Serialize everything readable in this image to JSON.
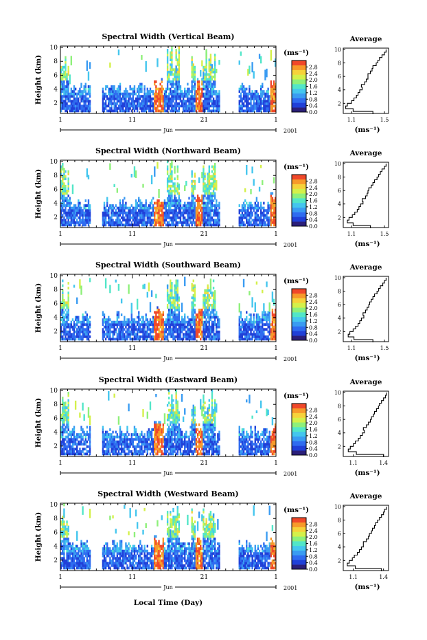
{
  "chart_data": [
    {
      "type": "heatmap",
      "title": "Spectral Width (Vertical Beam)",
      "ylabel": "Height (km)",
      "x_ticks": [
        "1",
        "11",
        "21",
        "1"
      ],
      "month_label": "Jun",
      "year_label": "2001",
      "y_ticks": [
        "2",
        "4",
        "6",
        "8",
        "10"
      ],
      "ylim": [
        0.5,
        10.2
      ],
      "colorbar_unit": "(ms⁻¹)",
      "colorbar_ticks": [
        "0.0",
        "0.4",
        "0.8",
        "1.2",
        "1.6",
        "2.0",
        "2.4",
        "2.8"
      ],
      "colorbar_range": [
        0,
        3.2
      ],
      "profile": {
        "title": "Average",
        "xlabel": "(ms⁻¹)",
        "x_ticks": [
          "1.1",
          "1.5"
        ],
        "x_tick_values": [
          1.1,
          1.5
        ],
        "xlim": [
          1.0,
          1.55
        ],
        "y_ticks": [
          "2",
          "4",
          "6",
          "8",
          "10"
        ],
        "height": [
          0.6,
          1.0,
          1.4,
          1.8,
          2.2,
          2.6,
          3.0,
          3.4,
          3.8,
          4.2,
          4.6,
          5.0,
          5.4,
          5.8,
          6.2,
          6.6,
          7.0,
          7.4,
          7.8,
          8.2,
          8.6,
          9.0,
          9.4,
          9.8
        ],
        "width": [
          1.36,
          1.12,
          1.03,
          1.05,
          1.1,
          1.13,
          1.16,
          1.18,
          1.2,
          1.23,
          1.22,
          1.26,
          1.28,
          1.3,
          1.3,
          1.33,
          1.35,
          1.36,
          1.4,
          1.42,
          1.44,
          1.47,
          1.5,
          1.52
        ]
      }
    },
    {
      "type": "heatmap",
      "title": "Spectral Width (Northward Beam)",
      "ylabel": "Height (km)",
      "x_ticks": [
        "1",
        "11",
        "21",
        "1"
      ],
      "month_label": "Jun",
      "year_label": "2001",
      "y_ticks": [
        "2",
        "4",
        "6",
        "8",
        "10"
      ],
      "ylim": [
        0.5,
        10.2
      ],
      "colorbar_unit": "(ms⁻¹)",
      "colorbar_ticks": [
        "0.0",
        "0.4",
        "0.8",
        "1.2",
        "1.6",
        "2.0",
        "2.4",
        "2.8"
      ],
      "colorbar_range": [
        0,
        3.2
      ],
      "profile": {
        "title": "Average",
        "xlabel": "(ms⁻¹)",
        "x_ticks": [
          "1.1",
          "1.5"
        ],
        "x_tick_values": [
          1.1,
          1.5
        ],
        "xlim": [
          1.0,
          1.55
        ],
        "y_ticks": [
          "2",
          "4",
          "6",
          "8",
          "10"
        ],
        "height": [
          0.6,
          1.0,
          1.4,
          1.8,
          2.2,
          2.6,
          3.0,
          3.4,
          3.8,
          4.2,
          4.6,
          5.0,
          5.4,
          5.8,
          6.2,
          6.6,
          7.0,
          7.4,
          7.8,
          8.2,
          8.6,
          9.0,
          9.4,
          9.8
        ],
        "width": [
          1.33,
          1.12,
          1.05,
          1.07,
          1.11,
          1.14,
          1.17,
          1.19,
          1.21,
          1.24,
          1.23,
          1.27,
          1.29,
          1.3,
          1.31,
          1.34,
          1.36,
          1.38,
          1.41,
          1.43,
          1.45,
          1.47,
          1.5,
          1.52
        ]
      }
    },
    {
      "type": "heatmap",
      "title": "Spectral Width (Southward Beam)",
      "ylabel": "Height (km)",
      "x_ticks": [
        "1",
        "11",
        "21",
        "1"
      ],
      "month_label": "Jun",
      "year_label": "2001",
      "y_ticks": [
        "2",
        "4",
        "6",
        "8",
        "10"
      ],
      "ylim": [
        0.5,
        10.2
      ],
      "colorbar_unit": "(ms⁻¹)",
      "colorbar_ticks": [
        "0.0",
        "0.4",
        "0.8",
        "1.2",
        "1.6",
        "2.0",
        "2.4",
        "2.8"
      ],
      "colorbar_range": [
        0,
        3.2
      ],
      "profile": {
        "title": "Average",
        "xlabel": "(ms⁻¹)",
        "x_ticks": [
          "1.1",
          "1.5"
        ],
        "x_tick_values": [
          1.1,
          1.5
        ],
        "xlim": [
          1.0,
          1.55
        ],
        "y_ticks": [
          "2",
          "4",
          "6",
          "8",
          "10"
        ],
        "height": [
          0.6,
          1.0,
          1.4,
          1.8,
          2.2,
          2.6,
          3.0,
          3.4,
          3.8,
          4.2,
          4.6,
          5.0,
          5.4,
          5.8,
          6.2,
          6.6,
          7.0,
          7.4,
          7.8,
          8.2,
          8.6,
          9.0,
          9.4,
          9.8
        ],
        "width": [
          1.36,
          1.13,
          1.06,
          1.08,
          1.12,
          1.15,
          1.18,
          1.2,
          1.22,
          1.25,
          1.24,
          1.27,
          1.29,
          1.31,
          1.32,
          1.34,
          1.36,
          1.38,
          1.41,
          1.43,
          1.45,
          1.48,
          1.5,
          1.52
        ]
      }
    },
    {
      "type": "heatmap",
      "title": "Spectral Width (Eastward Beam)",
      "ylabel": "Height (km)",
      "x_ticks": [
        "1",
        "11",
        "21",
        "1"
      ],
      "month_label": "Jun",
      "year_label": "2001",
      "y_ticks": [
        "2",
        "4",
        "6",
        "8",
        "10"
      ],
      "ylim": [
        0.5,
        10.2
      ],
      "colorbar_unit": "(ms⁻¹)",
      "colorbar_ticks": [
        "0.0",
        "0.4",
        "0.8",
        "1.2",
        "1.6",
        "2.0",
        "2.4",
        "2.8"
      ],
      "colorbar_range": [
        0,
        3.2
      ],
      "profile": {
        "title": "Average",
        "xlabel": "(ms⁻¹)",
        "x_ticks": [
          "1.1",
          "1.4"
        ],
        "x_tick_values": [
          1.1,
          1.4
        ],
        "xlim": [
          1.0,
          1.45
        ],
        "y_ticks": [
          "2",
          "4",
          "6",
          "8",
          "10"
        ],
        "height": [
          0.6,
          1.0,
          1.4,
          1.8,
          2.2,
          2.6,
          3.0,
          3.4,
          3.8,
          4.2,
          4.6,
          5.0,
          5.4,
          5.8,
          6.2,
          6.6,
          7.0,
          7.4,
          7.8,
          8.2,
          8.6,
          9.0,
          9.4,
          9.8
        ],
        "width": [
          1.4,
          1.13,
          1.05,
          1.07,
          1.1,
          1.12,
          1.15,
          1.17,
          1.19,
          1.21,
          1.2,
          1.23,
          1.25,
          1.27,
          1.28,
          1.3,
          1.31,
          1.33,
          1.35,
          1.36,
          1.38,
          1.4,
          1.42,
          1.43
        ]
      }
    },
    {
      "type": "heatmap",
      "title": "Spectral Width (Westward Beam)",
      "ylabel": "Height (km)",
      "x_ticks": [
        "1",
        "11",
        "21",
        "1"
      ],
      "month_label": "Jun",
      "year_label": "2001",
      "y_ticks": [
        "2",
        "4",
        "6",
        "8",
        "10"
      ],
      "ylim": [
        0.5,
        10.2
      ],
      "colorbar_unit": "(ms⁻¹)",
      "colorbar_ticks": [
        "0.0",
        "0.4",
        "0.8",
        "1.2",
        "1.6",
        "2.0",
        "2.4",
        "2.8"
      ],
      "colorbar_range": [
        0,
        3.2
      ],
      "profile": {
        "title": "Average",
        "xlabel": "(ms⁻¹)",
        "x_ticks": [
          "1.1",
          "1.4"
        ],
        "x_tick_values": [
          1.1,
          1.4
        ],
        "xlim": [
          1.0,
          1.45
        ],
        "y_ticks": [
          "2",
          "4",
          "6",
          "8",
          "10"
        ],
        "height": [
          0.6,
          1.0,
          1.4,
          1.8,
          2.2,
          2.6,
          3.0,
          3.4,
          3.8,
          4.2,
          4.6,
          5.0,
          5.4,
          5.8,
          6.2,
          6.6,
          7.0,
          7.4,
          7.8,
          8.2,
          8.6,
          9.0,
          9.4,
          9.8
        ],
        "width": [
          1.38,
          1.12,
          1.04,
          1.06,
          1.09,
          1.11,
          1.14,
          1.16,
          1.18,
          1.2,
          1.2,
          1.23,
          1.25,
          1.26,
          1.28,
          1.29,
          1.31,
          1.32,
          1.34,
          1.36,
          1.38,
          1.4,
          1.41,
          1.43
        ]
      }
    }
  ],
  "footer": {
    "xlabel": "Local Time (Day)"
  },
  "colors": {
    "colormap": [
      "#2b1f7a",
      "#2040d8",
      "#2f6cf0",
      "#3a9cf2",
      "#44c6ee",
      "#52e6c8",
      "#8ef07a",
      "#d4f04a",
      "#f6d23a",
      "#f79a2a",
      "#f0482a"
    ]
  }
}
